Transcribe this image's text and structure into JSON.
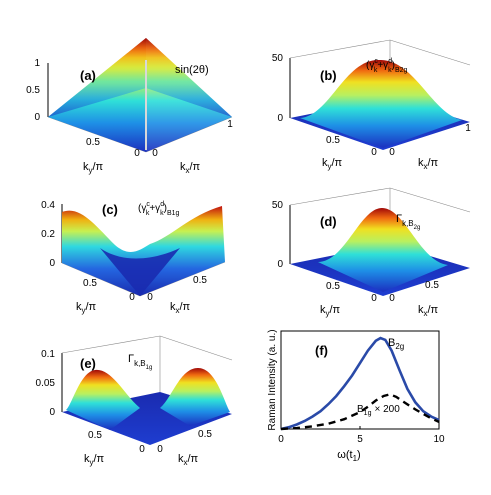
{
  "figure": {
    "panels": [
      {
        "id": "a",
        "tag": "(a)",
        "formula": "sin(2θ)",
        "z_ticks": [
          "0",
          "0.5",
          "1"
        ],
        "ky_ticks": [
          "0.5",
          "0"
        ],
        "kx_ticks": [
          "0",
          "1"
        ],
        "ky_label": "k",
        "ky_sub": "y",
        "kx_label": "k",
        "kx_sub": "x",
        "axis_unit": "/π"
      },
      {
        "id": "b",
        "tag": "(b)",
        "formula_main": "(γ",
        "formula_sup1": "c",
        "formula_sub1": "k",
        "formula_mid": "+γ",
        "formula_sup2": "d",
        "formula_sub2": "k",
        "formula_close": ")",
        "formula_sub3": "B2g",
        "z_ticks": [
          "0",
          "50"
        ],
        "ky_ticks": [
          "0.5",
          "0"
        ],
        "kx_ticks": [
          "0",
          "1"
        ],
        "ky_label": "k",
        "ky_sub": "y",
        "kx_label": "k",
        "kx_sub": "x",
        "axis_unit": "/π"
      },
      {
        "id": "c",
        "tag": "(c)",
        "formula_main": "(γ",
        "formula_sup1": "c",
        "formula_sub1": "k",
        "formula_mid": "+γ",
        "formula_sup2": "d",
        "formula_sub2": "k",
        "formula_close": ")",
        "formula_sub3": "B1g",
        "z_ticks": [
          "0",
          "0.2",
          "0.4"
        ],
        "ky_ticks": [
          "0.5",
          "0"
        ],
        "kx_ticks": [
          "0",
          "0.5"
        ],
        "ky_label": "k",
        "ky_sub": "y",
        "kx_label": "k",
        "kx_sub": "x",
        "axis_unit": "/π"
      },
      {
        "id": "d",
        "tag": "(d)",
        "formula_main": "Γ",
        "formula_sub1": "k,B",
        "formula_sub2": "2g",
        "z_ticks": [
          "0",
          "50"
        ],
        "ky_ticks": [
          "0.5",
          "0"
        ],
        "kx_ticks": [
          "0",
          "0.5"
        ],
        "ky_label": "k",
        "ky_sub": "y",
        "kx_label": "k",
        "kx_sub": "x",
        "axis_unit": "/π"
      },
      {
        "id": "e",
        "tag": "(e)",
        "formula_main": "Γ",
        "formula_sub1": "k,B",
        "formula_sub2": "1g",
        "z_ticks": [
          "0",
          "0.05",
          "0.1"
        ],
        "ky_ticks": [
          "0.5",
          "0"
        ],
        "kx_ticks": [
          "0",
          "0.5"
        ],
        "ky_label": "k",
        "ky_sub": "y",
        "kx_label": "k",
        "kx_sub": "x",
        "axis_unit": "/π"
      }
    ]
  },
  "chart_data": {
    "type": "line",
    "panel_tag": "(f)",
    "xlabel": "ω(t",
    "xlabel_sub": "1",
    "xlabel_close": ")",
    "ylabel": "Raman Intensity (a. u.)",
    "xlim": [
      0,
      10
    ],
    "ylim": [
      0,
      1.1
    ],
    "x_ticks": [
      "0",
      "5",
      "10"
    ],
    "series": [
      {
        "name": "B",
        "name_sub": "2g",
        "style": "solid",
        "color": "#2a4aa8",
        "x": [
          0,
          0.5,
          1,
          1.5,
          2,
          2.5,
          3,
          3.5,
          4,
          4.5,
          5,
          5.5,
          6,
          6.3,
          6.6,
          7,
          7.5,
          8,
          8.5,
          9,
          9.5,
          10
        ],
        "y": [
          0.0,
          0.02,
          0.05,
          0.09,
          0.14,
          0.2,
          0.28,
          0.37,
          0.48,
          0.6,
          0.74,
          0.88,
          0.99,
          1.02,
          1.0,
          0.88,
          0.66,
          0.45,
          0.3,
          0.2,
          0.14,
          0.1
        ]
      },
      {
        "name": "B",
        "name_sub": "1g",
        "name_suffix": "× 200",
        "style": "dashed",
        "color": "#000000",
        "x": [
          0,
          1,
          2,
          3,
          4,
          5,
          5.5,
          6,
          6.5,
          6.9,
          7.3,
          7.8,
          8.5,
          9,
          9.5,
          10
        ],
        "y": [
          0.0,
          0.01,
          0.03,
          0.06,
          0.11,
          0.19,
          0.25,
          0.32,
          0.37,
          0.39,
          0.36,
          0.3,
          0.22,
          0.17,
          0.12,
          0.08
        ]
      }
    ]
  }
}
